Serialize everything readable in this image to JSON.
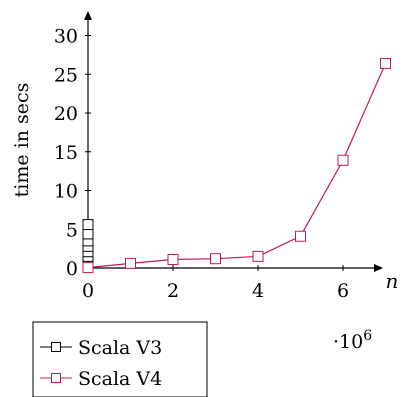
{
  "chart_data": {
    "type": "line",
    "xlabel": "n",
    "ylabel": "time in secs",
    "x_scale_label": "·10",
    "x_scale_exponent": "6",
    "xlim": [
      0,
      7
    ],
    "ylim": [
      0,
      31
    ],
    "x_ticks": [
      "0",
      "2",
      "4",
      "6"
    ],
    "y_ticks": [
      "0",
      "5",
      "10",
      "15",
      "20",
      "25",
      "30"
    ],
    "x_tick_values": [
      0,
      2,
      4,
      6
    ],
    "y_tick_values": [
      0,
      5,
      10,
      15,
      20,
      25,
      30
    ],
    "grid": false,
    "legend_position": "bottom-left, outside",
    "series": [
      {
        "name": "Scala V3",
        "color": "#000000",
        "marker": "square",
        "x": [
          0,
          0,
          0,
          0,
          0,
          0,
          0,
          0,
          0,
          0
        ],
        "y": [
          0.1,
          0.3,
          0.6,
          1.0,
          1.5,
          2.1,
          2.8,
          3.5,
          4.4,
          5.6
        ]
      },
      {
        "name": "Scala V4",
        "color": "#c2185b",
        "marker": "square",
        "x": [
          0,
          1,
          2,
          3,
          4,
          5,
          6,
          7
        ],
        "y": [
          0.05,
          0.6,
          1.1,
          1.2,
          1.5,
          4.1,
          13.9,
          26.4
        ]
      }
    ]
  }
}
